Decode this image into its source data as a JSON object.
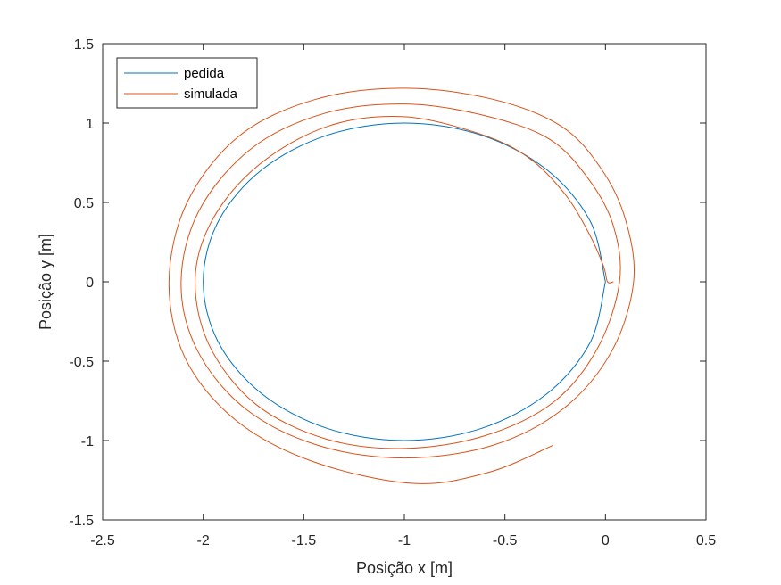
{
  "chart_data": {
    "type": "line",
    "title": "",
    "xlabel": "Posição x [m]",
    "ylabel": "Posição y [m]",
    "xlim": [
      -2.5,
      0.5
    ],
    "ylim": [
      -1.5,
      1.5
    ],
    "x_ticks": [
      -2.5,
      -2,
      -1.5,
      -1,
      -0.5,
      0,
      0.5
    ],
    "x_tick_labels": [
      "-2.5",
      "-2",
      "-1.5",
      "-1",
      "-0.5",
      "0",
      "0.5"
    ],
    "y_ticks": [
      -1.5,
      -1,
      -0.5,
      0,
      0.5,
      1,
      1.5
    ],
    "y_tick_labels": [
      "-1.5",
      "-1",
      "-0.5",
      "0",
      "0.5",
      "1",
      "1.5"
    ],
    "grid": false,
    "legend_position": "top-left",
    "series": [
      {
        "name": "pedida",
        "color": "#0072BD",
        "x": [
          0,
          -0.0761,
          -0.2929,
          -0.6173,
          -1,
          -1.3827,
          -1.7071,
          -1.9239,
          -2,
          -1.9239,
          -1.7071,
          -1.3827,
          -1,
          -0.6173,
          -0.2929,
          -0.0761,
          0
        ],
        "y": [
          0,
          0.3827,
          0.7071,
          0.9239,
          1,
          0.9239,
          0.7071,
          0.3827,
          0,
          -0.3827,
          -0.7071,
          -0.9239,
          -1,
          -0.9239,
          -0.7071,
          -0.3827,
          0
        ]
      },
      {
        "name": "simulada",
        "color": "#D95319",
        "x": [
          0.04,
          0.01,
          -0.01,
          -0.08,
          -0.2,
          -0.38,
          -0.62,
          -1,
          -1.38,
          -1.72,
          -1.95,
          -2.04,
          -1.97,
          -1.74,
          -1.39,
          -1,
          -0.6,
          -0.26,
          -0.04,
          0.07,
          0.04,
          -0.08,
          -0.28,
          -0.61,
          -1,
          -1.4,
          -1.76,
          -2.02,
          -2.11,
          -2.03,
          -1.79,
          -1.43,
          -1,
          -0.56,
          -0.21,
          0.03,
          0.14,
          0.1,
          -0.02,
          -0.22,
          -0.56,
          -1,
          -1.44,
          -1.82,
          -2.08,
          -2.17,
          -2.09,
          -1.84,
          -1.46,
          -0.96,
          -0.58,
          -0.26
        ],
        "y": [
          0,
          0,
          0.1,
          0.3,
          0.55,
          0.78,
          0.93,
          1.04,
          0.98,
          0.74,
          0.4,
          0.02,
          -0.4,
          -0.77,
          -0.99,
          -1.05,
          -0.97,
          -0.76,
          -0.42,
          0,
          0.35,
          0.64,
          0.9,
          1.05,
          1.12,
          1.06,
          0.84,
          0.45,
          0,
          -0.43,
          -0.8,
          -1.03,
          -1.11,
          -1.03,
          -0.8,
          -0.44,
          0,
          0.39,
          0.71,
          0.98,
          1.15,
          1.22,
          1.15,
          0.92,
          0.5,
          0,
          -0.48,
          -0.87,
          -1.13,
          -1.27,
          -1.2,
          -1.03
        ]
      }
    ]
  }
}
